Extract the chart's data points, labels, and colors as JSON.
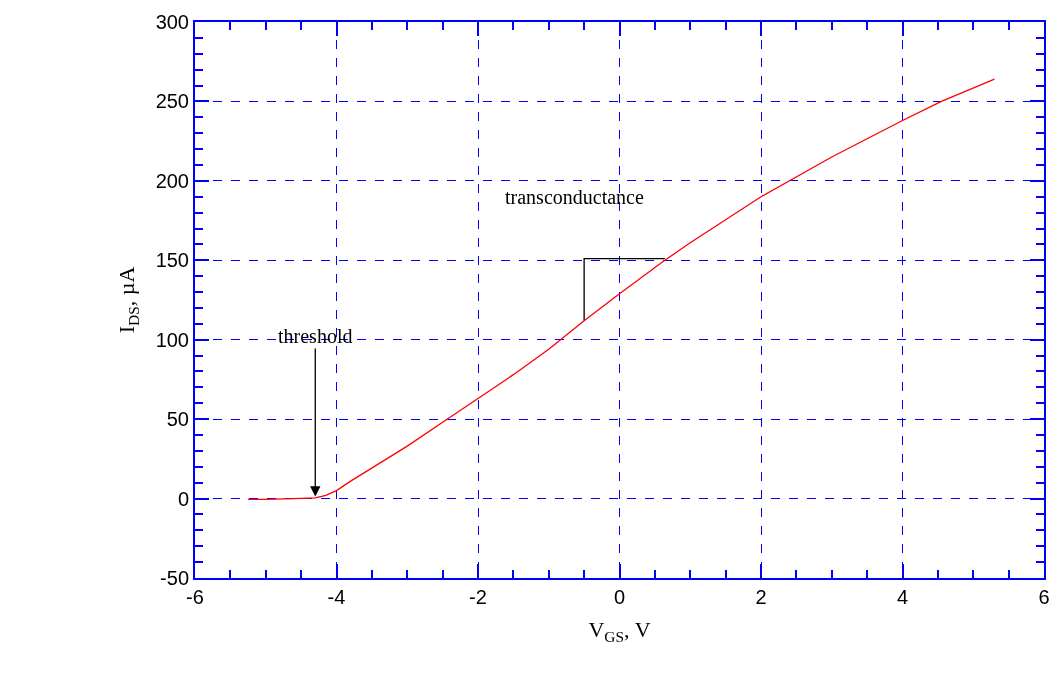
{
  "chart_data": {
    "type": "line",
    "xlabel": "V$_{GS}$, V",
    "ylabel": "I$_{DS}$, µA",
    "series": [
      {
        "type": "line",
        "color": "#000000",
        "x": [
          -0.5,
          -0.5,
          0.64
        ],
        "values": [
          112,
          151,
          151
        ]
      },
      {
        "color": "#ff0000",
        "x": [
          -5.25,
          -5.0,
          -4.6,
          -4.3,
          -4.15,
          -4.0,
          -3.8,
          -3.4,
          -3.0,
          -2.5,
          -2.0,
          -1.5,
          -1.0,
          -0.5,
          0.0,
          0.64,
          1.0,
          2.0,
          3.0,
          4.0,
          4.55,
          5.3
        ],
        "values": [
          -0.5,
          -0.5,
          0,
          0.5,
          2,
          5,
          11,
          22,
          33,
          48,
          63,
          78,
          94,
          112,
          129,
          150,
          161,
          190,
          215,
          238,
          250,
          264
        ]
      }
    ],
    "xlim": [
      -6,
      6
    ],
    "xticks": [
      -6,
      -4,
      -2,
      0,
      2,
      4,
      6
    ],
    "ylim": [
      -50,
      300
    ],
    "yticks": [
      -50,
      0,
      50,
      100,
      150,
      200,
      250,
      300
    ],
    "grid": true,
    "marker": "none",
    "line_style": "solid",
    "annotations": [
      {
        "text": "threshold",
        "x": -4.3,
        "y": 0
      },
      {
        "text": "transconductance",
        "x": 0.64,
        "y": 150
      }
    ]
  }
}
